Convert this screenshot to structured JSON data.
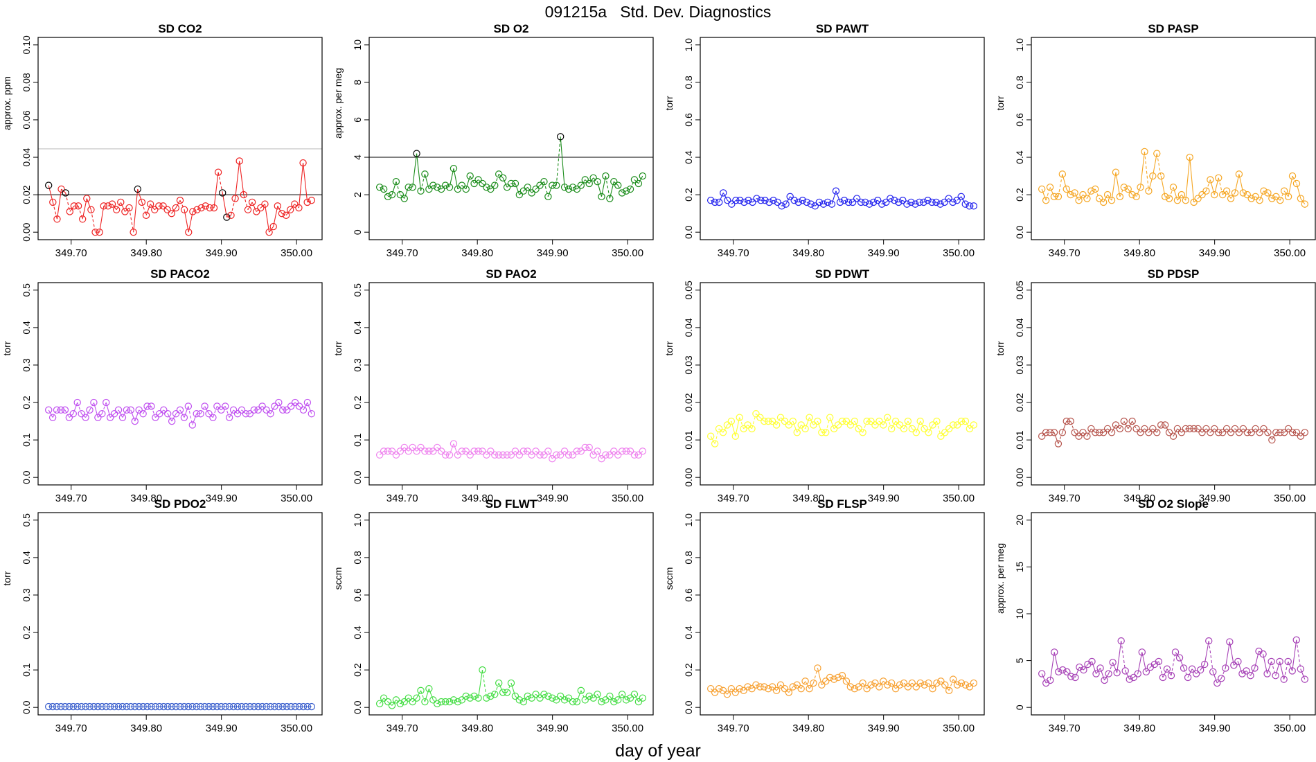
{
  "page_title": "091215a   Std. Dev. Diagnostics",
  "x_axis_label": "day of year",
  "x_ticks": [
    "349.70",
    "349.80",
    "349.90",
    "350.00"
  ],
  "chart_data": [
    {
      "type": "line",
      "title": "SD CO2",
      "ylabel": "approx. ppm",
      "ylim": [
        0,
        0.1
      ],
      "yticks": [
        "0.00",
        "0.02",
        "0.04",
        "0.06",
        "0.08",
        "0.10"
      ],
      "color": "#ee2222",
      "flag_color": "#000000",
      "threshold": 0.02,
      "ref_line": 0.0445,
      "xlim": [
        349.67,
        350.02
      ],
      "values": [
        0.025,
        0.016,
        0.007,
        0.023,
        0.021,
        0.011,
        0.014,
        0.014,
        0.007,
        0.018,
        0.012,
        0.0,
        0.0,
        0.014,
        0.014,
        0.015,
        0.012,
        0.016,
        0.011,
        0.013,
        0.0,
        0.023,
        0.016,
        0.009,
        0.015,
        0.012,
        0.014,
        0.014,
        0.012,
        0.01,
        0.013,
        0.017,
        0.012,
        0.0,
        0.011,
        0.012,
        0.013,
        0.014,
        0.013,
        0.013,
        0.032,
        0.021,
        0.008,
        0.009,
        0.018,
        0.038,
        0.02,
        0.012,
        0.016,
        0.011,
        0.013,
        0.015,
        0.0,
        0.003,
        0.014,
        0.01,
        0.009,
        0.012,
        0.015,
        0.013,
        0.037,
        0.016,
        0.017
      ],
      "flags": [
        0,
        4,
        21,
        41,
        42
      ]
    },
    {
      "type": "line",
      "title": "SD O2",
      "ylabel": "approx. per meg",
      "ylim": [
        0,
        10
      ],
      "yticks": [
        "0",
        "2",
        "4",
        "6",
        "8",
        "10"
      ],
      "color": "#1a8c1a",
      "flag_color": "#000000",
      "threshold": 4,
      "xlim": [
        349.67,
        350.02
      ],
      "values": [
        2.4,
        2.3,
        1.9,
        2.0,
        2.7,
        2.0,
        1.8,
        2.4,
        2.4,
        4.2,
        2.2,
        3.1,
        2.3,
        2.5,
        2.4,
        2.3,
        2.5,
        2.4,
        3.4,
        2.3,
        2.5,
        2.3,
        3.0,
        2.6,
        2.8,
        2.6,
        2.4,
        2.3,
        2.5,
        3.1,
        2.9,
        2.4,
        2.6,
        2.6,
        2.0,
        2.2,
        2.4,
        2.1,
        2.3,
        2.5,
        2.7,
        1.9,
        2.5,
        2.5,
        5.1,
        2.4,
        2.3,
        2.4,
        2.3,
        2.5,
        2.8,
        2.6,
        2.9,
        2.7,
        1.9,
        3.0,
        1.8,
        2.7,
        2.5,
        2.1,
        2.2,
        2.3,
        2.8,
        2.6,
        3.0
      ],
      "flags": [
        9,
        44
      ]
    },
    {
      "type": "line",
      "title": "SD PAWT",
      "ylabel": "torr",
      "ylim": [
        0,
        1
      ],
      "yticks": [
        "0.0",
        "0.2",
        "0.4",
        "0.6",
        "0.8",
        "1.0"
      ],
      "color": "#2222ee",
      "xlim": [
        349.67,
        350.02
      ],
      "values": [
        0.17,
        0.16,
        0.16,
        0.21,
        0.17,
        0.15,
        0.17,
        0.17,
        0.16,
        0.17,
        0.16,
        0.18,
        0.17,
        0.17,
        0.16,
        0.17,
        0.16,
        0.14,
        0.15,
        0.19,
        0.17,
        0.16,
        0.17,
        0.16,
        0.15,
        0.14,
        0.16,
        0.15,
        0.16,
        0.15,
        0.22,
        0.16,
        0.17,
        0.16,
        0.16,
        0.18,
        0.16,
        0.16,
        0.15,
        0.16,
        0.17,
        0.15,
        0.16,
        0.18,
        0.17,
        0.16,
        0.17,
        0.15,
        0.16,
        0.15,
        0.16,
        0.16,
        0.17,
        0.16,
        0.16,
        0.15,
        0.16,
        0.18,
        0.16,
        0.17,
        0.19,
        0.15,
        0.14,
        0.14
      ]
    },
    {
      "type": "line",
      "title": "SD PASP",
      "ylabel": "torr",
      "ylim": [
        0,
        1
      ],
      "yticks": [
        "0.0",
        "0.2",
        "0.4",
        "0.6",
        "0.8",
        "1.0"
      ],
      "color": "#f5a623",
      "xlim": [
        349.67,
        350.02
      ],
      "values": [
        0.23,
        0.17,
        0.24,
        0.19,
        0.19,
        0.31,
        0.23,
        0.2,
        0.21,
        0.17,
        0.2,
        0.18,
        0.22,
        0.23,
        0.18,
        0.16,
        0.2,
        0.17,
        0.32,
        0.19,
        0.24,
        0.23,
        0.2,
        0.19,
        0.24,
        0.43,
        0.22,
        0.3,
        0.42,
        0.3,
        0.19,
        0.18,
        0.24,
        0.17,
        0.2,
        0.17,
        0.4,
        0.16,
        0.18,
        0.2,
        0.22,
        0.28,
        0.2,
        0.29,
        0.2,
        0.22,
        0.18,
        0.21,
        0.31,
        0.21,
        0.2,
        0.18,
        0.19,
        0.17,
        0.22,
        0.21,
        0.18,
        0.19,
        0.17,
        0.22,
        0.19,
        0.3,
        0.26,
        0.18,
        0.15
      ]
    },
    {
      "type": "line",
      "title": "SD PACO2",
      "ylabel": "torr",
      "ylim": [
        0,
        0.5
      ],
      "yticks": [
        "0.0",
        "0.1",
        "0.2",
        "0.3",
        "0.4",
        "0.5"
      ],
      "color": "#c050f0",
      "xlim": [
        349.67,
        350.02
      ],
      "values": [
        0.18,
        0.16,
        0.18,
        0.18,
        0.18,
        0.16,
        0.17,
        0.2,
        0.17,
        0.16,
        0.18,
        0.2,
        0.16,
        0.17,
        0.2,
        0.16,
        0.17,
        0.18,
        0.16,
        0.18,
        0.18,
        0.15,
        0.18,
        0.17,
        0.19,
        0.19,
        0.16,
        0.17,
        0.18,
        0.17,
        0.15,
        0.17,
        0.18,
        0.16,
        0.19,
        0.14,
        0.17,
        0.17,
        0.19,
        0.17,
        0.16,
        0.19,
        0.18,
        0.19,
        0.16,
        0.18,
        0.17,
        0.18,
        0.17,
        0.17,
        0.18,
        0.18,
        0.19,
        0.18,
        0.17,
        0.19,
        0.2,
        0.18,
        0.18,
        0.19,
        0.2,
        0.19,
        0.18,
        0.2,
        0.17
      ]
    },
    {
      "type": "line",
      "title": "SD PAO2",
      "ylabel": "torr",
      "ylim": [
        0,
        0.5
      ],
      "yticks": [
        "0.0",
        "0.1",
        "0.2",
        "0.3",
        "0.4",
        "0.5"
      ],
      "color": "#ee82ee",
      "xlim": [
        349.67,
        350.02
      ],
      "values": [
        0.06,
        0.07,
        0.07,
        0.07,
        0.06,
        0.07,
        0.08,
        0.07,
        0.08,
        0.07,
        0.08,
        0.07,
        0.07,
        0.07,
        0.08,
        0.07,
        0.06,
        0.06,
        0.09,
        0.06,
        0.07,
        0.07,
        0.06,
        0.07,
        0.07,
        0.07,
        0.06,
        0.07,
        0.06,
        0.06,
        0.06,
        0.06,
        0.06,
        0.07,
        0.06,
        0.07,
        0.07,
        0.06,
        0.07,
        0.06,
        0.06,
        0.07,
        0.05,
        0.06,
        0.06,
        0.07,
        0.06,
        0.06,
        0.07,
        0.07,
        0.08,
        0.08,
        0.06,
        0.07,
        0.05,
        0.06,
        0.06,
        0.07,
        0.06,
        0.07,
        0.07,
        0.07,
        0.06,
        0.06,
        0.07
      ]
    },
    {
      "type": "line",
      "title": "SD PDWT",
      "ylabel": "torr",
      "ylim": [
        0,
        0.05
      ],
      "yticks": [
        "0.00",
        "0.01",
        "0.02",
        "0.03",
        "0.04",
        "0.05"
      ],
      "color": "#ffff33",
      "xlim": [
        349.67,
        350.02
      ],
      "values": [
        0.011,
        0.009,
        0.013,
        0.012,
        0.014,
        0.015,
        0.011,
        0.016,
        0.013,
        0.014,
        0.013,
        0.017,
        0.016,
        0.015,
        0.015,
        0.015,
        0.014,
        0.016,
        0.015,
        0.014,
        0.015,
        0.012,
        0.014,
        0.013,
        0.016,
        0.014,
        0.015,
        0.012,
        0.012,
        0.016,
        0.013,
        0.014,
        0.015,
        0.015,
        0.014,
        0.015,
        0.013,
        0.012,
        0.015,
        0.015,
        0.014,
        0.015,
        0.014,
        0.016,
        0.013,
        0.015,
        0.014,
        0.013,
        0.015,
        0.013,
        0.012,
        0.015,
        0.013,
        0.012,
        0.014,
        0.015,
        0.011,
        0.012,
        0.013,
        0.014,
        0.014,
        0.015,
        0.015,
        0.013,
        0.014
      ]
    },
    {
      "type": "line",
      "title": "SD PDSP",
      "ylabel": "torr",
      "ylim": [
        0,
        0.05
      ],
      "yticks": [
        "0.00",
        "0.01",
        "0.02",
        "0.03",
        "0.04",
        "0.05"
      ],
      "color": "#b5524a",
      "xlim": [
        349.67,
        350.02
      ],
      "values": [
        0.011,
        0.012,
        0.012,
        0.012,
        0.009,
        0.012,
        0.015,
        0.015,
        0.012,
        0.011,
        0.012,
        0.011,
        0.013,
        0.012,
        0.012,
        0.012,
        0.013,
        0.012,
        0.014,
        0.013,
        0.015,
        0.013,
        0.015,
        0.013,
        0.012,
        0.013,
        0.012,
        0.013,
        0.012,
        0.014,
        0.014,
        0.012,
        0.011,
        0.013,
        0.012,
        0.013,
        0.013,
        0.013,
        0.013,
        0.012,
        0.013,
        0.012,
        0.013,
        0.012,
        0.012,
        0.013,
        0.012,
        0.013,
        0.012,
        0.013,
        0.012,
        0.012,
        0.013,
        0.012,
        0.013,
        0.012,
        0.01,
        0.012,
        0.012,
        0.012,
        0.013,
        0.012,
        0.012,
        0.011,
        0.012
      ]
    },
    {
      "type": "line",
      "title": "SD PDO2",
      "ylabel": "torr",
      "ylim": [
        0,
        0.5
      ],
      "yticks": [
        "0.0",
        "0.1",
        "0.2",
        "0.3",
        "0.4",
        "0.5"
      ],
      "color": "#3a5fcd",
      "xlim": [
        349.67,
        350.02
      ],
      "values": [
        0.002,
        0.002,
        0.002,
        0.002,
        0.002,
        0.002,
        0.002,
        0.002,
        0.002,
        0.002,
        0.002,
        0.002,
        0.002,
        0.002,
        0.002,
        0.002,
        0.002,
        0.002,
        0.002,
        0.002,
        0.002,
        0.002,
        0.002,
        0.002,
        0.002,
        0.002,
        0.002,
        0.002,
        0.002,
        0.002,
        0.002,
        0.002,
        0.002,
        0.002,
        0.002,
        0.002,
        0.002,
        0.002,
        0.002,
        0.002,
        0.002,
        0.002,
        0.002,
        0.002,
        0.002,
        0.002,
        0.002,
        0.002,
        0.002,
        0.002,
        0.002,
        0.002,
        0.002,
        0.002,
        0.002,
        0.002,
        0.002,
        0.002,
        0.002,
        0.002,
        0.002,
        0.002,
        0.002,
        0.002,
        0.002
      ]
    },
    {
      "type": "line",
      "title": "SD FLWT",
      "ylabel": "sccm",
      "ylim": [
        0,
        1
      ],
      "yticks": [
        "0.0",
        "0.2",
        "0.4",
        "0.6",
        "0.8",
        "1.0"
      ],
      "color": "#44dd44",
      "xlim": [
        349.67,
        350.02
      ],
      "values": [
        0.02,
        0.05,
        0.03,
        0.01,
        0.04,
        0.02,
        0.03,
        0.05,
        0.03,
        0.05,
        0.09,
        0.03,
        0.1,
        0.04,
        0.02,
        0.03,
        0.03,
        0.03,
        0.04,
        0.03,
        0.04,
        0.06,
        0.05,
        0.06,
        0.05,
        0.2,
        0.05,
        0.06,
        0.07,
        0.13,
        0.08,
        0.08,
        0.13,
        0.06,
        0.04,
        0.03,
        0.06,
        0.05,
        0.07,
        0.05,
        0.07,
        0.06,
        0.05,
        0.04,
        0.06,
        0.04,
        0.05,
        0.03,
        0.03,
        0.09,
        0.04,
        0.06,
        0.05,
        0.07,
        0.03,
        0.04,
        0.06,
        0.03,
        0.04,
        0.07,
        0.04,
        0.05,
        0.07,
        0.03,
        0.05
      ]
    },
    {
      "type": "line",
      "title": "SD FLSP",
      "ylabel": "sccm",
      "ylim": [
        0,
        1
      ],
      "yticks": [
        "0.0",
        "0.2",
        "0.4",
        "0.6",
        "0.8",
        "1.0"
      ],
      "color": "#f7a030",
      "xlim": [
        349.67,
        350.02
      ],
      "values": [
        0.1,
        0.08,
        0.1,
        0.09,
        0.07,
        0.1,
        0.08,
        0.1,
        0.09,
        0.11,
        0.1,
        0.12,
        0.11,
        0.11,
        0.1,
        0.11,
        0.09,
        0.12,
        0.1,
        0.08,
        0.11,
        0.12,
        0.1,
        0.14,
        0.1,
        0.13,
        0.21,
        0.12,
        0.14,
        0.16,
        0.15,
        0.16,
        0.17,
        0.14,
        0.11,
        0.1,
        0.11,
        0.13,
        0.1,
        0.12,
        0.13,
        0.11,
        0.14,
        0.12,
        0.13,
        0.1,
        0.12,
        0.13,
        0.11,
        0.13,
        0.11,
        0.13,
        0.12,
        0.13,
        0.1,
        0.13,
        0.14,
        0.12,
        0.09,
        0.15,
        0.12,
        0.13,
        0.12,
        0.11,
        0.13
      ]
    },
    {
      "type": "line",
      "title": "SD O2 Slope",
      "ylabel": "approx. per meg",
      "ylim": [
        0,
        20
      ],
      "yticks": [
        "0",
        "5",
        "10",
        "15",
        "20"
      ],
      "color": "#a640b6",
      "xlim": [
        349.67,
        350.02
      ],
      "values": [
        3.6,
        2.6,
        2.9,
        5.9,
        3.8,
        4.0,
        3.8,
        3.3,
        3.2,
        4.3,
        4.0,
        4.6,
        4.9,
        3.6,
        4.2,
        2.9,
        3.6,
        4.8,
        3.7,
        7.1,
        3.9,
        3.0,
        3.2,
        3.6,
        5.9,
        3.8,
        4.3,
        4.6,
        4.9,
        3.2,
        4.1,
        3.4,
        5.9,
        5.3,
        4.2,
        3.2,
        4.1,
        3.6,
        4.0,
        4.6,
        7.1,
        3.8,
        2.6,
        3.1,
        4.2,
        7.0,
        4.5,
        4.9,
        3.6,
        3.9,
        3.4,
        4.2,
        6.0,
        5.7,
        3.6,
        4.9,
        3.4,
        4.9,
        3.0,
        4.9,
        3.9,
        7.2,
        4.1,
        3.0
      ]
    }
  ]
}
